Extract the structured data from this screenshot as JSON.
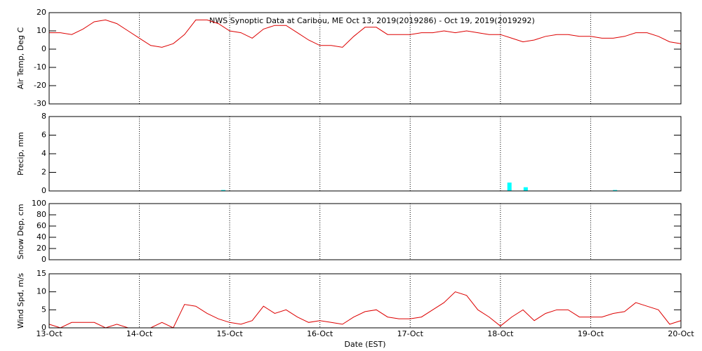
{
  "chart_data": [
    {
      "type": "line",
      "title": "NWS Synoptic Data at Caribou, ME   Oct 13, 2019(2019286) - Oct 19, 2019(2019292)",
      "y_label": "Air Temp, Deg C",
      "color": "#dd0000",
      "xlim": [
        0,
        7
      ],
      "ylim": [
        -30,
        20
      ],
      "yticks": [
        -30,
        -20,
        -10,
        0,
        10,
        20
      ],
      "x": [
        0,
        0.125,
        0.25,
        0.375,
        0.5,
        0.625,
        0.75,
        0.875,
        1,
        1.125,
        1.25,
        1.375,
        1.5,
        1.625,
        1.75,
        1.875,
        2,
        2.125,
        2.25,
        2.375,
        2.5,
        2.625,
        2.75,
        2.875,
        3,
        3.125,
        3.25,
        3.375,
        3.5,
        3.625,
        3.75,
        3.875,
        4,
        4.125,
        4.25,
        4.375,
        4.5,
        4.625,
        4.75,
        4.875,
        5,
        5.125,
        5.25,
        5.375,
        5.5,
        5.625,
        5.75,
        5.875,
        6,
        6.125,
        6.25,
        6.375,
        6.5,
        6.625,
        6.75,
        6.875,
        7
      ],
      "values": [
        9,
        9,
        8,
        11,
        15,
        16,
        14,
        10,
        6,
        2,
        1,
        3,
        8,
        16,
        16,
        14,
        10,
        9,
        6,
        11,
        13,
        13,
        9,
        5,
        2,
        2,
        1,
        7,
        12,
        12,
        8,
        8,
        8,
        9,
        9,
        10,
        9,
        10,
        9,
        8,
        8,
        6,
        4,
        5,
        7,
        8,
        8,
        7,
        7,
        6,
        6,
        7,
        9,
        9,
        7,
        4,
        3
      ]
    },
    {
      "type": "bar",
      "y_label": "Precip, mm",
      "color": "#00ffff",
      "xlim": [
        0,
        7
      ],
      "ylim": [
        0,
        8
      ],
      "yticks": [
        0,
        2,
        4,
        6,
        8
      ],
      "x": [
        1.93,
        5.1,
        5.28,
        6.27
      ],
      "values": [
        0.1,
        0.9,
        0.4,
        0.1
      ]
    },
    {
      "type": "line",
      "y_label": "Snow Dep, cm",
      "xlim": [
        0,
        7
      ],
      "ylim": [
        0,
        100
      ],
      "yticks": [
        0,
        20,
        40,
        60,
        80,
        100
      ]
    },
    {
      "type": "line",
      "y_label": "Wind Spd, m/s",
      "x_label": "Date (EST)",
      "color": "#dd0000",
      "xlim": [
        0,
        7
      ],
      "ylim": [
        0,
        15
      ],
      "yticks": [
        0,
        5,
        10,
        15
      ],
      "xticks": [
        {
          "value": 0,
          "label": "13-Oct"
        },
        {
          "value": 1,
          "label": "14-Oct"
        },
        {
          "value": 2,
          "label": "15-Oct"
        },
        {
          "value": 3,
          "label": "16-Oct"
        },
        {
          "value": 4,
          "label": "17-Oct"
        },
        {
          "value": 5,
          "label": "18-Oct"
        },
        {
          "value": 6,
          "label": "19-Oct"
        },
        {
          "value": 7,
          "label": "20-Oct"
        }
      ],
      "x": [
        0,
        0.125,
        0.25,
        0.375,
        0.5,
        0.625,
        0.75,
        0.875,
        1,
        1.125,
        1.25,
        1.375,
        1.5,
        1.625,
        1.75,
        1.875,
        2,
        2.125,
        2.25,
        2.375,
        2.5,
        2.625,
        2.75,
        2.875,
        3,
        3.125,
        3.25,
        3.375,
        3.5,
        3.625,
        3.75,
        3.875,
        4,
        4.125,
        4.25,
        4.375,
        4.5,
        4.625,
        4.75,
        4.875,
        5,
        5.125,
        5.25,
        5.375,
        5.5,
        5.625,
        5.75,
        5.875,
        6,
        6.125,
        6.25,
        6.375,
        6.5,
        6.625,
        6.75,
        6.875,
        7
      ],
      "values": [
        1,
        0,
        1.5,
        1.5,
        1.5,
        0,
        1,
        0,
        0,
        0,
        1.5,
        0,
        6.5,
        6,
        4,
        2.5,
        1.5,
        1,
        2,
        6,
        4,
        5,
        3,
        1.5,
        2,
        1.5,
        1,
        3,
        4.5,
        5,
        3,
        2.5,
        2.5,
        3,
        5,
        7,
        10,
        9,
        5,
        3,
        0.5,
        3,
        5,
        2,
        4,
        5,
        5,
        3,
        3,
        3,
        4,
        4.5,
        7,
        6,
        5,
        1,
        2
      ]
    }
  ]
}
